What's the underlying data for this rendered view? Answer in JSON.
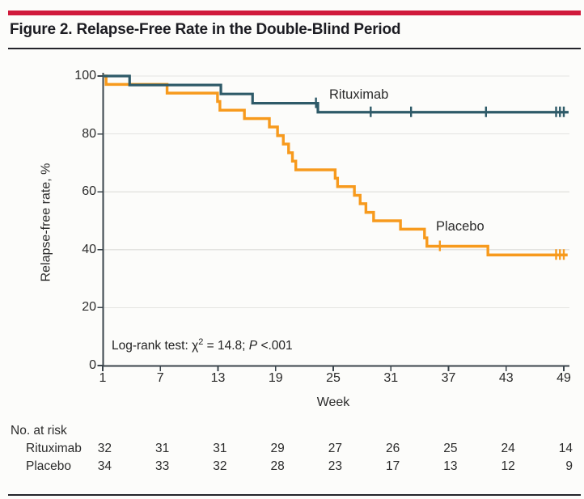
{
  "figure": {
    "title": "Figure 2. Relapse-Free Rate in the Double-Blind Period",
    "accent_red": "#D01A3B",
    "rule_color": "#24242A"
  },
  "chart_data": {
    "type": "line",
    "subtype": "kaplan-meier-step-curve",
    "title": "Relapse-Free Rate in the Double-Blind Period",
    "x_axis": {
      "label": "Week",
      "ticks": [
        1,
        7,
        13,
        19,
        25,
        31,
        37,
        43,
        49
      ],
      "range": [
        1,
        49.5
      ]
    },
    "y_axis": {
      "label": "Relapse-free rate, %",
      "ticks": [
        0,
        20,
        40,
        60,
        80,
        100
      ],
      "range": [
        0,
        100
      ],
      "gridlines": [
        20,
        40,
        60,
        80,
        100
      ]
    },
    "annotation": {
      "prefix": "Log-rank test: χ",
      "sup": "2",
      "mid": " = 14.8; ",
      "stat": "P",
      "suffix": " <.001"
    },
    "series": [
      {
        "name": "Rituximab",
        "color": "#2E5A68",
        "stroke_width": 3.2,
        "steps": [
          [
            1,
            100
          ],
          [
            3.8,
            96.9
          ],
          [
            13.3,
            93.8
          ],
          [
            16.6,
            90.6
          ],
          [
            23.4,
            87.5
          ]
        ],
        "end_week": 49.5,
        "final_rate": 87.5,
        "censor_marks": [
          [
            23.2,
            90.6
          ],
          [
            28.9,
            87.5
          ],
          [
            33.1,
            87.5
          ],
          [
            40.9,
            87.5
          ],
          [
            48.2,
            87.5
          ],
          [
            48.6,
            87.5
          ],
          [
            49.0,
            87.5
          ]
        ]
      },
      {
        "name": "Placebo",
        "color": "#F79A1D",
        "stroke_width": 3.4,
        "steps": [
          [
            1,
            100
          ],
          [
            1.35,
            97.1
          ],
          [
            7.7,
            94.1
          ],
          [
            12.95,
            91.2
          ],
          [
            13.2,
            88.2
          ],
          [
            15.75,
            85.3
          ],
          [
            18.35,
            82.4
          ],
          [
            19.2,
            79.4
          ],
          [
            19.8,
            76.5
          ],
          [
            20.35,
            73.5
          ],
          [
            20.75,
            70.6
          ],
          [
            21.1,
            67.6
          ],
          [
            25.2,
            64.7
          ],
          [
            25.45,
            61.8
          ],
          [
            27.2,
            58.8
          ],
          [
            27.8,
            55.9
          ],
          [
            28.4,
            52.9
          ],
          [
            29.2,
            50.0
          ],
          [
            32.0,
            47.1
          ],
          [
            34.5,
            44.1
          ],
          [
            34.75,
            41.2
          ],
          [
            41.1,
            38.2
          ]
        ],
        "end_week": 49.4,
        "final_rate": 38.2,
        "censor_marks": [
          [
            36.1,
            41.2
          ],
          [
            48.2,
            38.2
          ],
          [
            48.6,
            38.2
          ],
          [
            49.0,
            38.2
          ]
        ]
      }
    ],
    "at_risk": {
      "header": "No. at risk",
      "weeks": [
        1,
        7,
        13,
        19,
        25,
        31,
        37,
        43,
        49
      ],
      "rows": [
        {
          "label": "Rituximab",
          "values": [
            32,
            31,
            31,
            29,
            27,
            26,
            25,
            24,
            14
          ]
        },
        {
          "label": "Placebo",
          "values": [
            34,
            33,
            32,
            28,
            23,
            17,
            13,
            12,
            9
          ]
        }
      ]
    },
    "style": {
      "grid_color": "#E4E4E1",
      "axis_color": "#3A444B",
      "text_color": "#2B2B2B"
    }
  }
}
